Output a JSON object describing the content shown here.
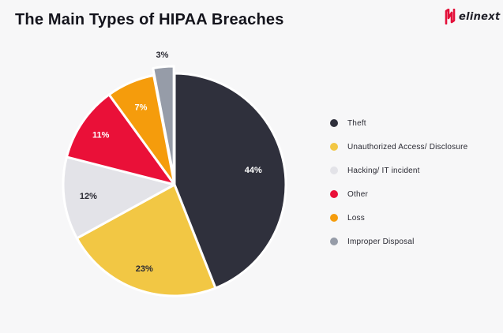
{
  "header": {
    "title": "The Main Types of HIPAA Breaches",
    "logo_text": "elinext",
    "logo_color": "#e3103a"
  },
  "chart_data": {
    "type": "pie",
    "title": "The Main Types of HIPAA Breaches",
    "legend_position": "right",
    "slices": [
      {
        "label": "Theft",
        "value": 44,
        "display": "44%",
        "color": "#2f303c"
      },
      {
        "label": "Unauthorized Access/ Disclosure",
        "value": 23,
        "display": "23%",
        "color": "#f2c744"
      },
      {
        "label": "Hacking/ IT incident",
        "value": 12,
        "display": "12%",
        "color": "#e3e3e8"
      },
      {
        "label": "Other",
        "value": 11,
        "display": "11%",
        "color": "#ea1038"
      },
      {
        "label": "Loss",
        "value": 7,
        "display": "7%",
        "color": "#f59c0c"
      },
      {
        "label": "Improper Disposal",
        "value": 3,
        "display": "3%",
        "color": "#969ca8"
      }
    ]
  }
}
